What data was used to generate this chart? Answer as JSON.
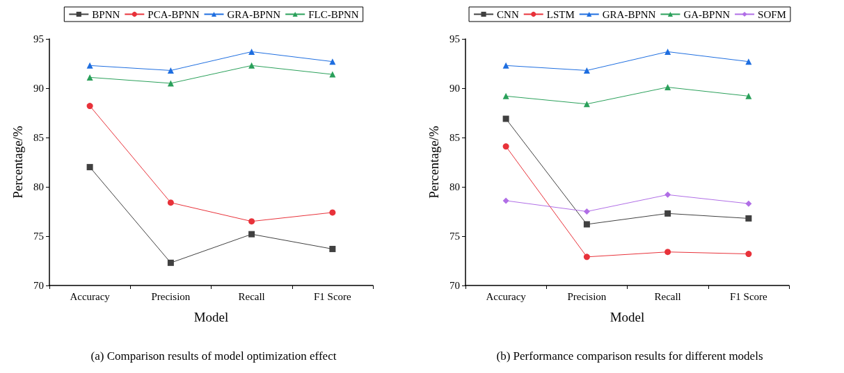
{
  "chart_data": [
    {
      "type": "line",
      "xlabel": "Model",
      "ylabel": "Percentage/%",
      "categories": [
        "Accuracy",
        "Precision",
        "Recall",
        "F1 Score"
      ],
      "series": [
        {
          "name": "BPNN",
          "color": "#404040",
          "marker": "square",
          "values": [
            82.0,
            72.3,
            75.2,
            73.7
          ]
        },
        {
          "name": "PCA-BPNN",
          "color": "#e8323a",
          "marker": "circle",
          "values": [
            88.2,
            78.4,
            76.5,
            77.4
          ]
        },
        {
          "name": "GRA-BPNN",
          "color": "#1e6ee0",
          "marker": "triangle",
          "values": [
            92.3,
            91.8,
            93.7,
            92.7
          ]
        },
        {
          "name": "FLC-BPNN",
          "color": "#2aa05a",
          "marker": "triangle",
          "values": [
            91.1,
            90.5,
            92.3,
            91.4
          ]
        }
      ],
      "ylim": [
        70,
        95
      ],
      "yticks": [
        70,
        75,
        80,
        85,
        90,
        95
      ],
      "grid": false,
      "legend": "top",
      "annotations": [
        "(a) Comparison results of model optimization effect"
      ]
    },
    {
      "type": "line",
      "xlabel": "Model",
      "ylabel": "Percentage/%",
      "categories": [
        "Accuracy",
        "Precision",
        "Recall",
        "F1 Score"
      ],
      "series": [
        {
          "name": "CNN",
          "color": "#404040",
          "marker": "square",
          "values": [
            86.9,
            76.2,
            77.3,
            76.8
          ]
        },
        {
          "name": "LSTM",
          "color": "#e8323a",
          "marker": "circle",
          "values": [
            84.1,
            72.9,
            73.4,
            73.2
          ]
        },
        {
          "name": "GRA-BPNN",
          "color": "#1e6ee0",
          "marker": "triangle",
          "values": [
            92.3,
            91.8,
            93.7,
            92.7
          ]
        },
        {
          "name": "GA-BPNN",
          "color": "#2aa05a",
          "marker": "triangle",
          "values": [
            89.2,
            88.4,
            90.1,
            89.2
          ]
        },
        {
          "name": "SOFM",
          "color": "#b06ee6",
          "marker": "diamond",
          "values": [
            78.6,
            77.5,
            79.2,
            78.3
          ]
        }
      ],
      "ylim": [
        70,
        95
      ],
      "yticks": [
        70,
        75,
        80,
        85,
        90,
        95
      ],
      "grid": false,
      "legend": "top",
      "annotations": [
        "(b) Performance comparison results for different models"
      ]
    }
  ]
}
